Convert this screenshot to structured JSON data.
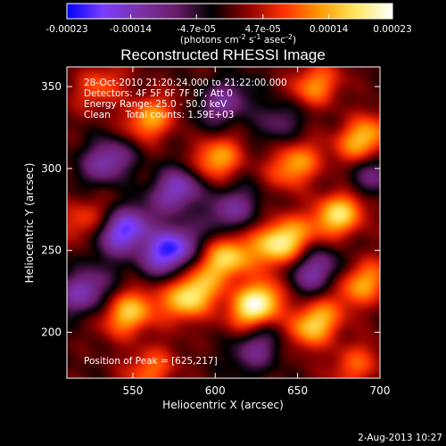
{
  "colorbar": {
    "tick_labels": [
      "-0.00023",
      "-0.00014",
      "-4.7e-05",
      "4.7e-05",
      "0.00014",
      "0.00023"
    ],
    "tick_values": [
      -0.00023,
      -0.00014,
      -4.7e-05,
      4.7e-05,
      0.00014,
      0.00023
    ],
    "range": [
      -0.00023,
      0.00023
    ],
    "units_prefix": "(photons cm",
    "units_sup1": "-2",
    "units_mid": " s",
    "units_sup2": "-1",
    "units_mid2": " asec",
    "units_sup3": "-2",
    "units_suffix": ")",
    "colors": [
      "#0000ff",
      "#7a3cff",
      "#7b32a8",
      "#6a1c6a",
      "#000000",
      "#8c0000",
      "#ff3000",
      "#ff9a00",
      "#ffe860",
      "#ffffff"
    ]
  },
  "chart_data": {
    "type": "heatmap",
    "title": "Reconstructed RHESSI Image",
    "xlabel": "Heliocentric X (arcsec)",
    "ylabel": "Heliocentric Y (arcsec)",
    "xlim": [
      510,
      700
    ],
    "ylim": [
      172,
      362
    ],
    "x_ticks": [
      550,
      600,
      650,
      700
    ],
    "y_ticks": [
      200,
      250,
      300,
      350
    ],
    "annotations": [
      "28-Oct-2010 21:20:24.000 to 21:22:00.000",
      "Detectors: 4F 5F 6F 7F 8F, Att 0",
      "Energy Range: 25.0 - 50.0 keV",
      "Clean     Total counts: 1.59E+03"
    ],
    "peak_label": "Position of Peak = [625,217]",
    "peak": [
      625,
      217
    ],
    "sources": [
      {
        "x": 625,
        "y": 217,
        "amp": 1.0
      },
      {
        "x": 585,
        "y": 222,
        "amp": 0.85
      },
      {
        "x": 548,
        "y": 212,
        "amp": 0.7
      },
      {
        "x": 660,
        "y": 205,
        "amp": 0.75
      },
      {
        "x": 690,
        "y": 230,
        "amp": 0.6
      },
      {
        "x": 607,
        "y": 245,
        "amp": 0.75
      },
      {
        "x": 640,
        "y": 255,
        "amp": 0.9
      },
      {
        "x": 675,
        "y": 272,
        "amp": 0.8
      },
      {
        "x": 648,
        "y": 302,
        "amp": 0.6
      },
      {
        "x": 690,
        "y": 318,
        "amp": 0.7
      },
      {
        "x": 560,
        "y": 330,
        "amp": 0.6
      },
      {
        "x": 600,
        "y": 305,
        "amp": 0.65
      },
      {
        "x": 530,
        "y": 350,
        "amp": 0.4
      },
      {
        "x": 660,
        "y": 350,
        "amp": 0.55
      },
      {
        "x": 560,
        "y": 177,
        "amp": 0.45
      },
      {
        "x": 520,
        "y": 268,
        "amp": 0.35
      },
      {
        "x": 685,
        "y": 180,
        "amp": 0.4
      },
      {
        "x": 545,
        "y": 262,
        "amp": -0.85
      },
      {
        "x": 572,
        "y": 250,
        "amp": -0.95
      },
      {
        "x": 578,
        "y": 288,
        "amp": -0.7
      },
      {
        "x": 520,
        "y": 225,
        "amp": -0.6
      },
      {
        "x": 610,
        "y": 275,
        "amp": -0.5
      },
      {
        "x": 625,
        "y": 190,
        "amp": -0.45
      },
      {
        "x": 660,
        "y": 237,
        "amp": -0.55
      },
      {
        "x": 605,
        "y": 340,
        "amp": -0.5
      },
      {
        "x": 695,
        "y": 295,
        "amp": -0.4
      },
      {
        "x": 535,
        "y": 305,
        "amp": -0.6
      },
      {
        "x": 640,
        "y": 330,
        "amp": -0.35
      }
    ]
  },
  "footer": {
    "date": "2-Aug-2013 10:27"
  }
}
